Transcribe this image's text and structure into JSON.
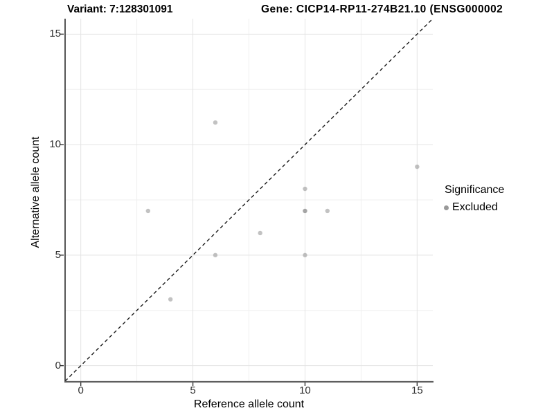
{
  "header": {
    "variant_title": "Variant: 7:128301091",
    "gene_title": "Gene: CICP14-RP11-274B21.10 (ENSG000002"
  },
  "chart_data": {
    "type": "scatter",
    "title": "Variant: 7:128301091   Gene: CICP14-RP11-274B21.10 (ENSG000002",
    "xlabel": "Reference allele count",
    "ylabel": "Alternative allele count",
    "xlim": [
      -0.7,
      15.7
    ],
    "ylim": [
      -0.7,
      15.7
    ],
    "xticks": [
      0,
      5,
      10,
      15
    ],
    "yticks": [
      0,
      5,
      10,
      15
    ],
    "minor_ticks_x": [
      2.5,
      7.5,
      12.5
    ],
    "minor_ticks_y": [
      2.5,
      7.5,
      12.5
    ],
    "grid": "major+minor",
    "identity_line": {
      "style": "dashed",
      "slope": 1,
      "intercept": 0,
      "color": "#1a1a1a"
    },
    "series": [
      {
        "name": "Excluded",
        "color": "#8f8f8f",
        "opacity": 0.55,
        "points": [
          [
            3,
            7
          ],
          [
            4,
            3
          ],
          [
            6,
            5
          ],
          [
            6,
            11
          ],
          [
            8,
            6
          ],
          [
            10,
            5
          ],
          [
            10,
            7
          ],
          [
            10,
            7
          ],
          [
            10,
            8
          ],
          [
            11,
            7
          ],
          [
            15,
            9
          ]
        ]
      }
    ],
    "legend": {
      "title": "Significance",
      "position": "right",
      "items": [
        {
          "label": "Excluded",
          "color": "#999999"
        }
      ]
    },
    "style": {
      "major_grid_color": "#e3e3e3",
      "minor_grid_color": "#efefef",
      "axis_line_y_color": "#2b2b2b",
      "axis_line_x_color": "#5e5e5e",
      "tick_color": "#333333",
      "tick_label_color": "#2f2f2f",
      "point_radius": 3.2
    }
  }
}
